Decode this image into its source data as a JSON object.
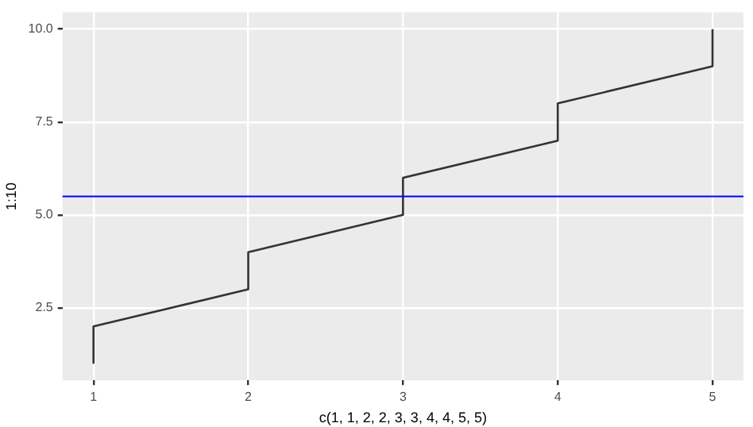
{
  "chart_data": {
    "type": "line",
    "xlabel": "c(1, 1, 2, 2, 3, 3, 4, 4, 5, 5)",
    "ylabel": "1:10",
    "x": [
      1,
      1,
      2,
      2,
      3,
      3,
      4,
      4,
      5,
      5
    ],
    "series": [
      {
        "color": "#333333",
        "values": [
          1,
          2,
          3,
          4,
          5,
          6,
          7,
          8,
          9,
          10
        ]
      }
    ],
    "xlim": [
      0.8,
      5.2
    ],
    "xticks": [
      1,
      2,
      3,
      4,
      5
    ],
    "ylim": [
      0.55,
      10.45
    ],
    "yticks": [
      2.5,
      {
        "value": 5,
        "label": "5.0"
      },
      7.5,
      {
        "value": 10,
        "label": "10.0"
      }
    ],
    "ref_lines": [
      {
        "axis": "y",
        "value": 5.5,
        "color": "#0000ff"
      }
    ],
    "grid": true,
    "legend": false,
    "marker": "none",
    "line_style": "solid"
  }
}
